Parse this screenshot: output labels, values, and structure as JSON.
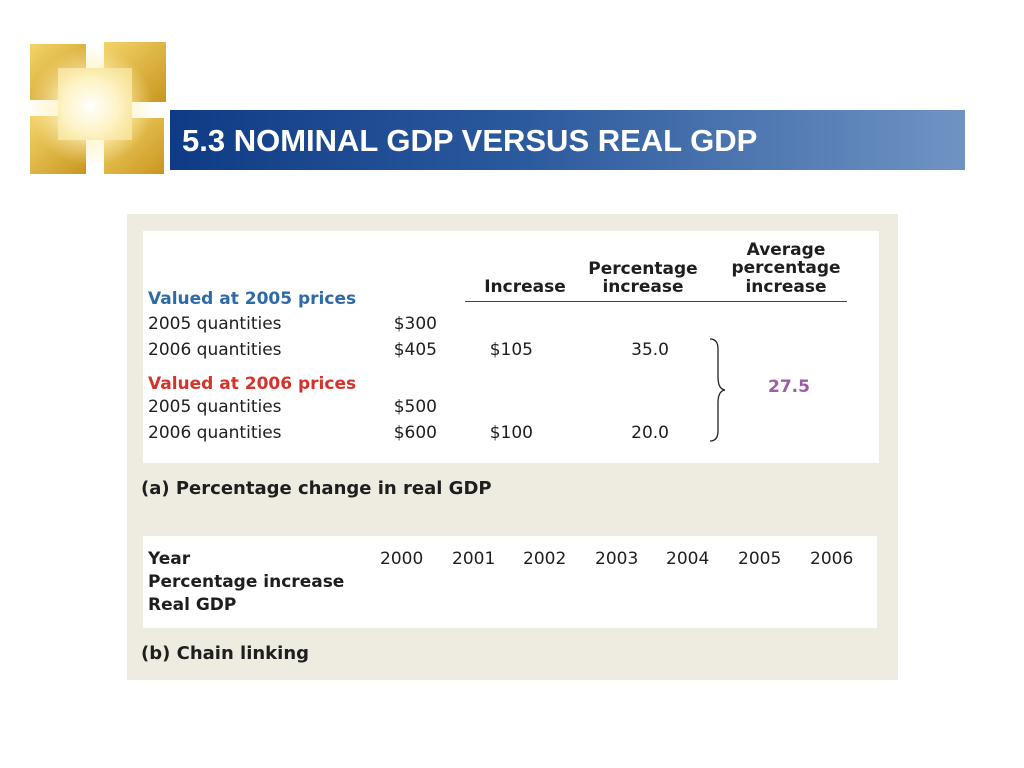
{
  "slide": {
    "title": "5.3 NOMINAL GDP VERSUS REAL GDP"
  },
  "panel_a": {
    "headers": {
      "increase": "Increase",
      "pct_increase_1": "Percentage",
      "pct_increase_2": "increase",
      "avg_1": "Average",
      "avg_2": "percentage",
      "avg_3": "increase"
    },
    "group_2005": {
      "label": "Valued at 2005 prices",
      "rows": [
        {
          "label": "2005 quantities",
          "value": "$300",
          "increase": "",
          "pct": ""
        },
        {
          "label": "2006 quantities",
          "value": "$405",
          "increase": "$105",
          "pct": "35.0"
        }
      ]
    },
    "group_2006": {
      "label": "Valued at 2006 prices",
      "rows": [
        {
          "label": "2005 quantities",
          "value": "$500",
          "increase": "",
          "pct": ""
        },
        {
          "label": "2006 quantities",
          "value": "$600",
          "increase": "$100",
          "pct": "20.0"
        }
      ]
    },
    "average": "27.5",
    "caption": "(a) Percentage change in real GDP"
  },
  "panel_b": {
    "row_labels": [
      "Year",
      "Percentage increase",
      "Real GDP"
    ],
    "years": [
      "2000",
      "2001",
      "2002",
      "2003",
      "2004",
      "2005",
      "2006"
    ],
    "caption": "(b) Chain linking"
  },
  "colors": {
    "title_bar_dark": "#0f3b86",
    "title_bar_light": "#6f93c3",
    "figure_background": "#eeebe0",
    "group_2005_label": "#2e6aa8",
    "group_2006_label": "#d5322b",
    "average_value": "#a05aa8"
  },
  "icons": {
    "logo": "golden-squares-logo-icon",
    "brace": "right-curly-brace-icon"
  }
}
